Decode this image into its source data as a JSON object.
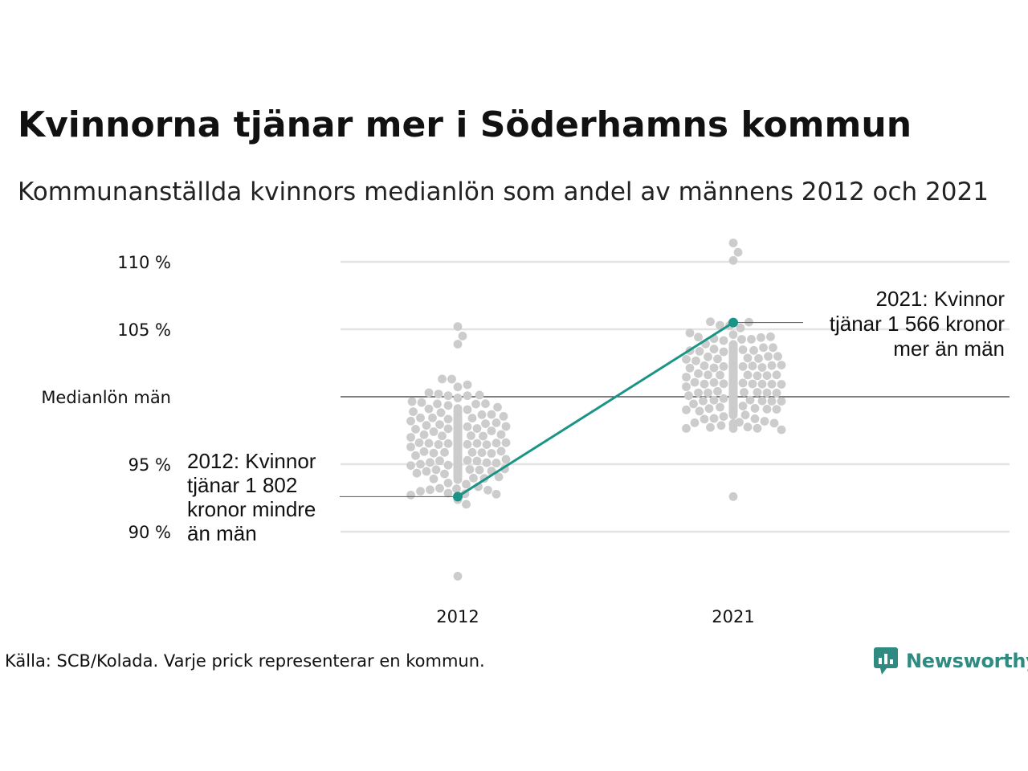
{
  "header": {
    "title": "Kvinnorna tjänar mer i Söderhamns kommun",
    "subtitle": "Kommunanställda kvinnors medianlön som andel av männens 2012 och 2021"
  },
  "footer": {
    "source": "Källa: SCB/Kolada. Varje prick representerar en kommun.",
    "logo_text": "Newsworthy"
  },
  "colors": {
    "highlight": "#1a9486",
    "dots": "#cccccc",
    "grid": "#e3e3e3",
    "reference_line": "#333333",
    "logo": "#2f8a82"
  },
  "chart_data": {
    "type": "scatter",
    "subtype": "beeswarm",
    "categories": [
      "2012",
      "2021"
    ],
    "y_unit": "percent",
    "ylim": [
      86,
      112
    ],
    "y_ticks": [
      {
        "value": 90,
        "label": "90 %"
      },
      {
        "value": 95,
        "label": "95 %"
      },
      {
        "value": 100,
        "label": "Medianlön män"
      },
      {
        "value": 105,
        "label": "105 %"
      },
      {
        "value": 110,
        "label": "110 %"
      }
    ],
    "reference_line": {
      "value": 100,
      "label": "Medianlön män"
    },
    "grid": true,
    "highlight": {
      "points": [
        {
          "x": "2012",
          "y": 92.6
        },
        {
          "x": "2021",
          "y": 105.5
        }
      ]
    },
    "distribution": [
      {
        "x": "2012",
        "min": 86.7,
        "max": 105.2,
        "center": 96.5
      },
      {
        "x": "2021",
        "min": 92.6,
        "max": 111.4,
        "center": 101.0
      }
    ],
    "annotations": [
      {
        "x": "2012",
        "y": 92.6,
        "lines": [
          "2012: Kvinnor",
          "tjänar 1 802",
          "kronor mindre",
          "än män"
        ]
      },
      {
        "x": "2021",
        "y": 105.5,
        "lines": [
          "2021: Kvinnor",
          "tjänar 1 566 kronor",
          "mer än män"
        ]
      }
    ]
  }
}
